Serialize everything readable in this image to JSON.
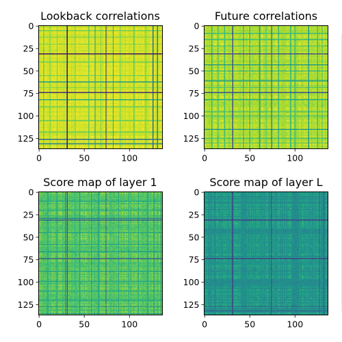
{
  "chart_data": [
    {
      "type": "heatmap",
      "title": "Lookback correlations",
      "xlim": [
        0,
        137
      ],
      "ylim": [
        137,
        0
      ],
      "xticks": [
        0,
        50,
        100
      ],
      "yticks": [
        0,
        25,
        50,
        75,
        100,
        125
      ],
      "colormap": "viridis",
      "value_range": [
        0,
        1
      ],
      "base_value": 0.95,
      "dark_lines": [
        {
          "index": 31,
          "value": 0.05
        },
        {
          "index": 74,
          "value": 0.12
        },
        {
          "index": 62,
          "value": 0.55
        },
        {
          "index": 126,
          "value": 0.35
        },
        {
          "index": 131,
          "value": 0.45
        },
        {
          "index": 82,
          "value": 0.6
        }
      ],
      "medium_lines": [
        5,
        12,
        20,
        40,
        55,
        68,
        90,
        105,
        118
      ],
      "medium_value": 0.78,
      "noise": 0.05
    },
    {
      "type": "heatmap",
      "title": "Future correlations",
      "xlim": [
        0,
        137
      ],
      "ylim": [
        137,
        0
      ],
      "xticks": [
        0,
        50,
        100
      ],
      "yticks": [
        0,
        25,
        50,
        75,
        100,
        125
      ],
      "colormap": "viridis",
      "value_range": [
        0,
        1
      ],
      "base_value": 0.9,
      "dark_lines": [
        {
          "index": 31,
          "value": 0.25
        },
        {
          "index": 74,
          "value": 0.25
        },
        {
          "index": 43,
          "value": 0.55
        },
        {
          "index": 61,
          "value": 0.55
        },
        {
          "index": 82,
          "value": 0.6
        },
        {
          "index": 115,
          "value": 0.55
        }
      ],
      "medium_lines": [
        8,
        15,
        22,
        50,
        68,
        95,
        100,
        125,
        130
      ],
      "medium_value": 0.7,
      "noise": 0.07
    },
    {
      "type": "heatmap",
      "title": "Score map of layer 1",
      "xlim": [
        0,
        137
      ],
      "ylim": [
        137,
        0
      ],
      "xticks": [
        0,
        50,
        100
      ],
      "yticks": [
        0,
        25,
        50,
        75,
        100,
        125
      ],
      "colormap": "viridis",
      "value_range": [
        0,
        1
      ],
      "base_value": 0.78,
      "dark_lines": [
        {
          "index": 31,
          "value": 0.3
        },
        {
          "index": 74,
          "value": 0.3
        },
        {
          "index": 29,
          "value": 0.45
        },
        {
          "index": 127,
          "value": 0.5
        },
        {
          "index": 135,
          "value": 0.5
        }
      ],
      "medium_lines": [
        10,
        20,
        45,
        58,
        66,
        88,
        99,
        110,
        120
      ],
      "medium_value": 0.6,
      "noise": 0.09
    },
    {
      "type": "heatmap",
      "title": "Score map of layer L",
      "xlim": [
        0,
        137
      ],
      "ylim": [
        137,
        0
      ],
      "xticks": [
        0,
        50,
        100
      ],
      "yticks": [
        0,
        25,
        50,
        75,
        100,
        125
      ],
      "colormap": "viridis",
      "value_range": [
        0,
        1
      ],
      "base_value": 0.55,
      "dark_lines": [
        {
          "index": 31,
          "value": 0.2
        },
        {
          "index": 74,
          "value": 0.2
        },
        {
          "index": 127,
          "value": 0.3
        },
        {
          "index": 132,
          "value": 0.3
        }
      ],
      "medium_lines": [
        6,
        18,
        35,
        48,
        60,
        85,
        95,
        108,
        118
      ],
      "medium_value": 0.72,
      "noise": 0.08
    }
  ],
  "colors": {
    "viridis_stops": [
      "#440154",
      "#482878",
      "#3e4989",
      "#31688e",
      "#26828e",
      "#1f9e89",
      "#35b779",
      "#6ece58",
      "#b5de2b",
      "#fde725"
    ]
  }
}
